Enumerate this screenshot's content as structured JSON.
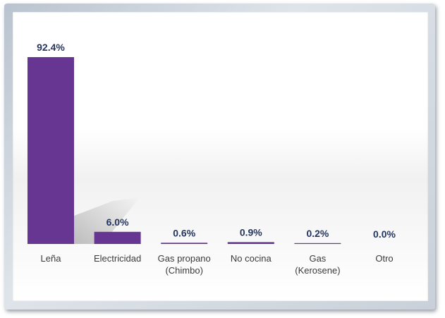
{
  "chart_data": {
    "type": "bar",
    "categories": [
      "Leña",
      "Electricidad",
      "Gas propano (Chimbo)",
      "No cocina",
      "Gas (Kerosene)",
      "Otro"
    ],
    "category_lines": [
      [
        "Leña"
      ],
      [
        "Electricidad"
      ],
      [
        "Gas propano",
        "(Chimbo)"
      ],
      [
        "No cocina"
      ],
      [
        "Gas",
        "(Kerosene)"
      ],
      [
        "Otro"
      ]
    ],
    "values": [
      92.4,
      6.0,
      0.6,
      0.9,
      0.2,
      0.0
    ],
    "value_labels": [
      "92.4%",
      "6.0%",
      "0.6%",
      "0.9%",
      "0.2%",
      "0.0%"
    ],
    "title": "",
    "xlabel": "",
    "ylabel": "",
    "ylim": [
      0,
      100
    ],
    "grid": false,
    "legend": "none",
    "bar_color": "#673592",
    "label_color": "#25365e"
  }
}
